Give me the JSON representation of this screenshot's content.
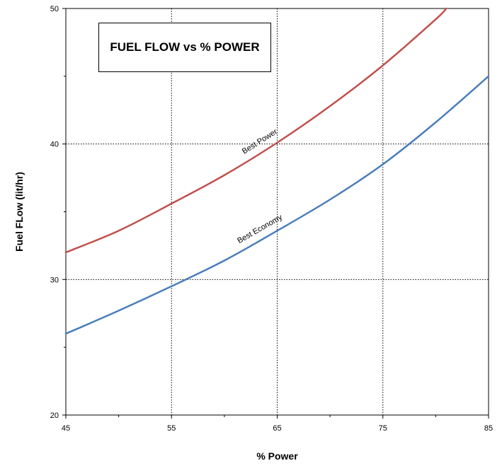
{
  "chart_data": {
    "type": "line",
    "title": "FUEL FLOW vs % POWER",
    "xlabel": "% Power",
    "ylabel": "Fuel FLow (lit/hr)",
    "xlim": [
      45,
      85
    ],
    "ylim": [
      20,
      50
    ],
    "xticks": [
      45,
      55,
      65,
      75,
      85
    ],
    "yticks": [
      20,
      30,
      40,
      50
    ],
    "grid": true,
    "grid_style": "dotted",
    "series": [
      {
        "name": "Best Power",
        "color": "#c0504d",
        "x": [
          45,
          50,
          55,
          60,
          65,
          70,
          75,
          80,
          81
        ],
        "y": [
          32.0,
          33.6,
          35.6,
          37.7,
          40.1,
          42.8,
          45.8,
          49.2,
          50.0
        ]
      },
      {
        "name": "Best Economy",
        "color": "#4a7ebb",
        "x": [
          45,
          50,
          55,
          60,
          65,
          70,
          75,
          80,
          85
        ],
        "y": [
          26.0,
          27.7,
          29.5,
          31.4,
          33.6,
          35.9,
          38.5,
          41.6,
          45.0
        ]
      }
    ]
  }
}
